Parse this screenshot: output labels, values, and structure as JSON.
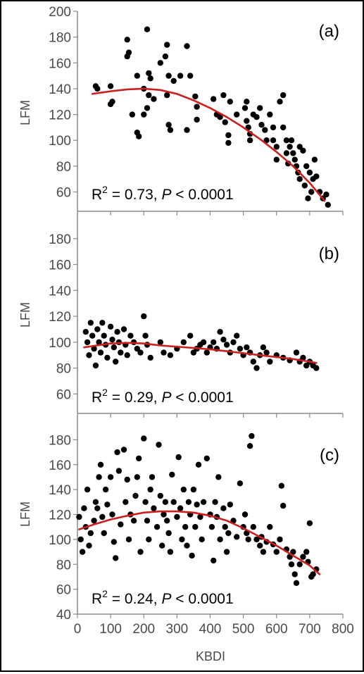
{
  "figure": {
    "x_axis_label": "KBDI"
  },
  "colors": {
    "points": "#000000",
    "fit_line": "#cc1f1f",
    "axis": "#8a8a8a",
    "tick_text": "#4a4a4a"
  },
  "chart_data": [
    {
      "type": "scatter",
      "panel_label": "(a)",
      "ylabel": "LFM",
      "xlabel": "KBDI",
      "xlim": [
        0,
        800
      ],
      "ylim": [
        45,
        200
      ],
      "yticks": [
        60,
        80,
        100,
        120,
        140,
        160,
        180,
        200
      ],
      "xticks": [
        0,
        100,
        200,
        300,
        400,
        500,
        600,
        700,
        800
      ],
      "show_x_tick_labels": false,
      "grid": false,
      "stat": {
        "r_label": "R",
        "r_sup": "2",
        "r_value": " = 0.73, ",
        "p_label": "P",
        "p_value": " < 0.0001"
      },
      "fit": {
        "x": [
          45,
          100,
          150,
          200,
          250,
          300,
          350,
          400,
          450,
          500,
          550,
          600,
          650,
          700,
          745
        ],
        "y": [
          136,
          138,
          139.5,
          140,
          139,
          136,
          131,
          125,
          118,
          110,
          101,
          91,
          80,
          67,
          53
        ]
      },
      "points": [
        [
          55,
          142
        ],
        [
          60,
          140
        ],
        [
          100,
          142
        ],
        [
          105,
          130
        ],
        [
          100,
          128
        ],
        [
          150,
          178
        ],
        [
          155,
          168
        ],
        [
          150,
          165
        ],
        [
          165,
          120
        ],
        [
          180,
          150
        ],
        [
          180,
          106
        ],
        [
          185,
          103
        ],
        [
          200,
          140
        ],
        [
          210,
          186
        ],
        [
          215,
          152
        ],
        [
          220,
          148
        ],
        [
          215,
          135
        ],
        [
          210,
          125
        ],
        [
          200,
          120
        ],
        [
          230,
          132
        ],
        [
          250,
          160
        ],
        [
          270,
          174
        ],
        [
          265,
          165
        ],
        [
          275,
          150
        ],
        [
          270,
          135
        ],
        [
          275,
          112
        ],
        [
          280,
          108
        ],
        [
          290,
          146
        ],
        [
          310,
          150
        ],
        [
          330,
          173
        ],
        [
          330,
          108
        ],
        [
          340,
          150
        ],
        [
          355,
          134
        ],
        [
          360,
          126
        ],
        [
          360,
          116
        ],
        [
          410,
          132
        ],
        [
          420,
          120
        ],
        [
          430,
          118
        ],
        [
          440,
          135
        ],
        [
          445,
          114
        ],
        [
          455,
          104
        ],
        [
          455,
          98
        ],
        [
          460,
          130
        ],
        [
          480,
          120
        ],
        [
          505,
          125
        ],
        [
          510,
          130
        ],
        [
          510,
          115
        ],
        [
          515,
          110
        ],
        [
          520,
          105
        ],
        [
          520,
          100
        ],
        [
          530,
          120
        ],
        [
          540,
          118
        ],
        [
          550,
          125
        ],
        [
          555,
          112
        ],
        [
          565,
          108
        ],
        [
          570,
          100
        ],
        [
          580,
          120
        ],
        [
          590,
          110
        ],
        [
          590,
          100
        ],
        [
          600,
          95
        ],
        [
          600,
          85
        ],
        [
          610,
          130
        ],
        [
          620,
          135
        ],
        [
          620,
          110
        ],
        [
          630,
          100
        ],
        [
          630,
          90
        ],
        [
          635,
          82
        ],
        [
          640,
          95
        ],
        [
          645,
          100
        ],
        [
          650,
          90
        ],
        [
          655,
          85
        ],
        [
          660,
          80
        ],
        [
          665,
          75
        ],
        [
          670,
          95
        ],
        [
          670,
          70
        ],
        [
          680,
          92
        ],
        [
          685,
          65
        ],
        [
          690,
          80
        ],
        [
          695,
          55
        ],
        [
          700,
          75
        ],
        [
          705,
          60
        ],
        [
          710,
          70
        ],
        [
          715,
          85
        ],
        [
          720,
          72
        ],
        [
          730,
          60
        ],
        [
          740,
          55
        ],
        [
          750,
          58
        ],
        [
          755,
          50
        ]
      ]
    },
    {
      "type": "scatter",
      "panel_label": "(b)",
      "ylabel": "LFM",
      "xlabel": "KBDI",
      "xlim": [
        0,
        800
      ],
      "ylim": [
        45,
        200
      ],
      "yticks": [
        60,
        80,
        100,
        120,
        140,
        160,
        180
      ],
      "xticks": [
        0,
        100,
        200,
        300,
        400,
        500,
        600,
        700,
        800
      ],
      "show_x_tick_labels": false,
      "grid": false,
      "stat": {
        "r_label": "R",
        "r_sup": "2",
        "r_value": " = 0.29, ",
        "p_label": "P",
        "p_value": " < 0.0001"
      },
      "fit": {
        "x": [
          20,
          100,
          150,
          200,
          250,
          300,
          350,
          400,
          450,
          500,
          550,
          600,
          650,
          700,
          720
        ],
        "y": [
          96,
          99,
          99.5,
          99,
          97.5,
          96.5,
          95.5,
          94.5,
          93,
          91.5,
          90,
          88.5,
          87,
          85,
          84
        ]
      },
      "points": [
        [
          25,
          108
        ],
        [
          30,
          100
        ],
        [
          35,
          90
        ],
        [
          40,
          115
        ],
        [
          45,
          105
        ],
        [
          50,
          95
        ],
        [
          55,
          82
        ],
        [
          60,
          110
        ],
        [
          65,
          100
        ],
        [
          70,
          92
        ],
        [
          75,
          115
        ],
        [
          80,
          105
        ],
        [
          85,
          98
        ],
        [
          90,
          88
        ],
        [
          100,
          112
        ],
        [
          105,
          102
        ],
        [
          110,
          96
        ],
        [
          115,
          85
        ],
        [
          120,
          108
        ],
        [
          125,
          100
        ],
        [
          130,
          92
        ],
        [
          140,
          110
        ],
        [
          145,
          98
        ],
        [
          150,
          90
        ],
        [
          160,
          105
        ],
        [
          170,
          100
        ],
        [
          180,
          95
        ],
        [
          190,
          92
        ],
        [
          200,
          120
        ],
        [
          205,
          105
        ],
        [
          210,
          98
        ],
        [
          220,
          88
        ],
        [
          250,
          100
        ],
        [
          260,
          92
        ],
        [
          280,
          90
        ],
        [
          300,
          95
        ],
        [
          320,
          100
        ],
        [
          340,
          105
        ],
        [
          350,
          92
        ],
        [
          360,
          95
        ],
        [
          370,
          98
        ],
        [
          380,
          100
        ],
        [
          390,
          92
        ],
        [
          400,
          96
        ],
        [
          410,
          100
        ],
        [
          420,
          95
        ],
        [
          430,
          108
        ],
        [
          440,
          102
        ],
        [
          450,
          98
        ],
        [
          460,
          92
        ],
        [
          470,
          100
        ],
        [
          480,
          105
        ],
        [
          490,
          95
        ],
        [
          500,
          90
        ],
        [
          510,
          96
        ],
        [
          520,
          92
        ],
        [
          530,
          85
        ],
        [
          540,
          80
        ],
        [
          550,
          90
        ],
        [
          560,
          96
        ],
        [
          570,
          92
        ],
        [
          580,
          85
        ],
        [
          600,
          90
        ],
        [
          620,
          88
        ],
        [
          640,
          86
        ],
        [
          660,
          92
        ],
        [
          670,
          85
        ],
        [
          680,
          88
        ],
        [
          690,
          82
        ],
        [
          700,
          85
        ],
        [
          710,
          82
        ],
        [
          720,
          80
        ]
      ]
    },
    {
      "type": "scatter",
      "panel_label": "(c)",
      "ylabel": "LFM",
      "xlabel": "KBDI",
      "xlim": [
        0,
        800
      ],
      "ylim": [
        40,
        200
      ],
      "yticks": [
        40,
        60,
        80,
        100,
        120,
        140,
        160,
        180
      ],
      "xticks": [
        0,
        100,
        200,
        300,
        400,
        500,
        600,
        700,
        800
      ],
      "show_x_tick_labels": true,
      "grid": false,
      "stat": {
        "r_label": "R",
        "r_sup": "2",
        "r_value": " = 0.24, ",
        "p_label": "P",
        "p_value": " < 0.0001"
      },
      "fit": {
        "x": [
          5,
          50,
          100,
          150,
          200,
          250,
          300,
          350,
          400,
          450,
          500,
          550,
          600,
          650,
          700,
          730
        ],
        "y": [
          108,
          112,
          116,
          119,
          121.5,
          122.5,
          122.5,
          121.5,
          119,
          115,
          109,
          102,
          95,
          87,
          79,
          72
        ]
      },
      "points": [
        [
          5,
          118
        ],
        [
          10,
          100
        ],
        [
          15,
          90
        ],
        [
          20,
          125
        ],
        [
          25,
          110
        ],
        [
          30,
          140
        ],
        [
          35,
          95
        ],
        [
          40,
          105
        ],
        [
          50,
          115
        ],
        [
          55,
          130
        ],
        [
          60,
          125
        ],
        [
          65,
          150
        ],
        [
          70,
          160
        ],
        [
          75,
          118
        ],
        [
          80,
          105
        ],
        [
          85,
          140
        ],
        [
          90,
          128
        ],
        [
          100,
          150
        ],
        [
          105,
          120
        ],
        [
          110,
          98
        ],
        [
          115,
          85
        ],
        [
          120,
          170
        ],
        [
          125,
          155
        ],
        [
          130,
          112
        ],
        [
          140,
          172
        ],
        [
          145,
          130
        ],
        [
          150,
          148
        ],
        [
          155,
          100
        ],
        [
          160,
          120
        ],
        [
          170,
          115
        ],
        [
          175,
          135
        ],
        [
          180,
          150
        ],
        [
          185,
          165
        ],
        [
          190,
          90
        ],
        [
          200,
          181
        ],
        [
          205,
          130
        ],
        [
          210,
          115
        ],
        [
          215,
          100
        ],
        [
          220,
          140
        ],
        [
          225,
          150
        ],
        [
          230,
          125
        ],
        [
          240,
          110
        ],
        [
          245,
          176
        ],
        [
          250,
          135
        ],
        [
          255,
          95
        ],
        [
          260,
          120
        ],
        [
          265,
          130
        ],
        [
          270,
          115
        ],
        [
          275,
          105
        ],
        [
          280,
          90
        ],
        [
          285,
          152
        ],
        [
          290,
          130
        ],
        [
          300,
          118
        ],
        [
          305,
          166
        ],
        [
          310,
          125
        ],
        [
          315,
          100
        ],
        [
          320,
          140
        ],
        [
          325,
          110
        ],
        [
          330,
          95
        ],
        [
          335,
          130
        ],
        [
          340,
          120
        ],
        [
          345,
          87
        ],
        [
          350,
          140
        ],
        [
          355,
          110
        ],
        [
          360,
          128
        ],
        [
          365,
          160
        ],
        [
          370,
          118
        ],
        [
          375,
          100
        ],
        [
          380,
          130
        ],
        [
          390,
          165
        ],
        [
          400,
          120
        ],
        [
          405,
          110
        ],
        [
          410,
          83
        ],
        [
          415,
          130
        ],
        [
          420,
          118
        ],
        [
          425,
          150
        ],
        [
          430,
          100
        ],
        [
          440,
          125
        ],
        [
          445,
          110
        ],
        [
          450,
          90
        ],
        [
          455,
          105
        ],
        [
          460,
          128
        ],
        [
          470,
          115
        ],
        [
          480,
          102
        ],
        [
          490,
          145
        ],
        [
          500,
          110
        ],
        [
          505,
          120
        ],
        [
          510,
          105
        ],
        [
          515,
          100
        ],
        [
          520,
          175
        ],
        [
          525,
          183
        ],
        [
          530,
          110
        ],
        [
          540,
          100
        ],
        [
          550,
          95
        ],
        [
          555,
          102
        ],
        [
          560,
          90
        ],
        [
          570,
          98
        ],
        [
          580,
          110
        ],
        [
          590,
          96
        ],
        [
          600,
          90
        ],
        [
          610,
          100
        ],
        [
          615,
          143
        ],
        [
          620,
          127
        ],
        [
          630,
          92
        ],
        [
          640,
          86
        ],
        [
          645,
          80
        ],
        [
          650,
          90
        ],
        [
          655,
          72
        ],
        [
          660,
          65
        ],
        [
          670,
          80
        ],
        [
          680,
          86
        ],
        [
          690,
          90
        ],
        [
          695,
          82
        ],
        [
          700,
          113
        ],
        [
          705,
          70
        ],
        [
          710,
          72
        ],
        [
          720,
          76
        ]
      ]
    }
  ]
}
